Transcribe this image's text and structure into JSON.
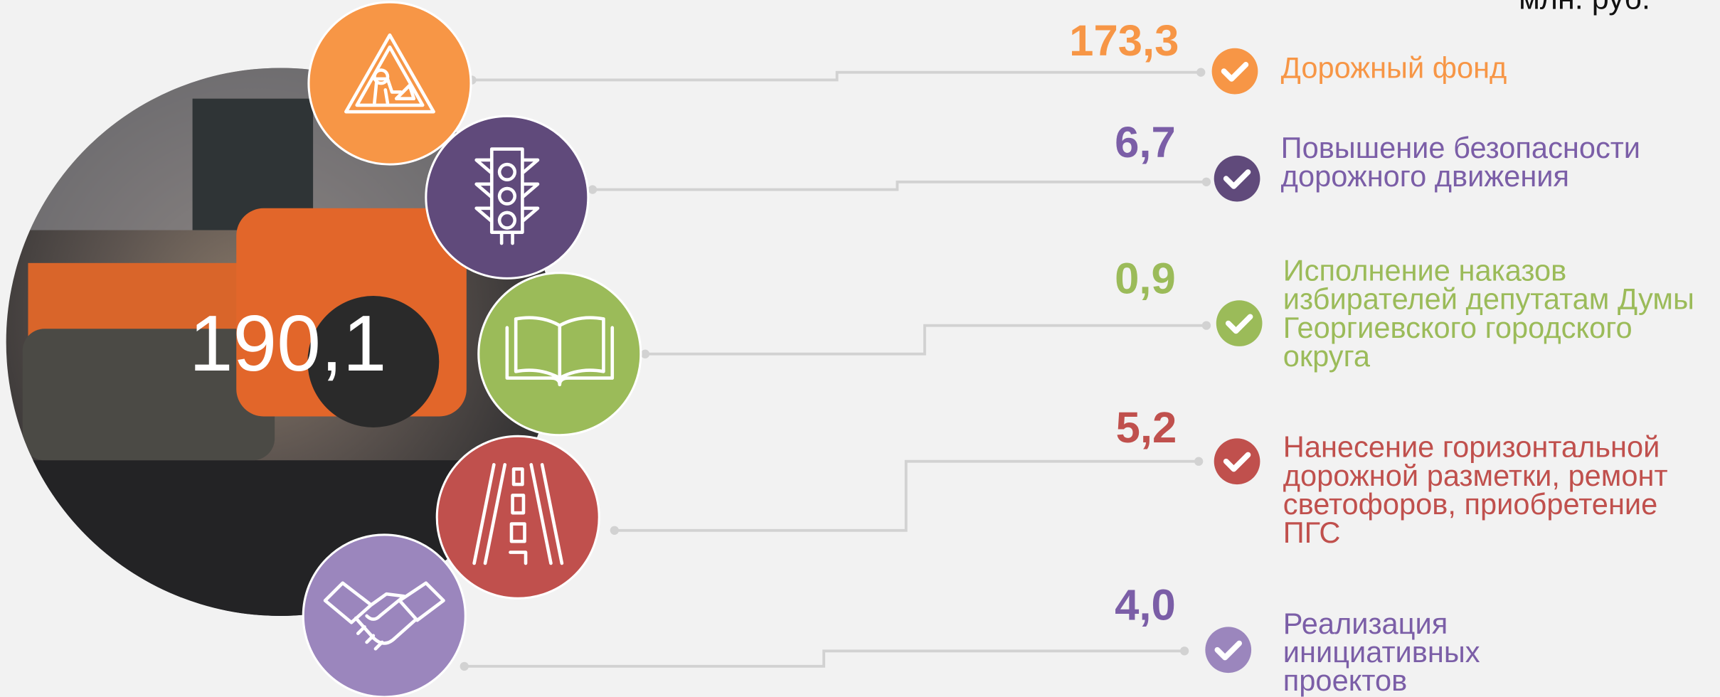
{
  "unit": "млн. руб.",
  "total": "190,1",
  "items": [
    {
      "value": "173,3",
      "label": [
        "Дорожный фонд"
      ]
    },
    {
      "value": "6,7",
      "label": [
        "Повышение безопасности",
        "дорожного движения"
      ]
    },
    {
      "value": "0,9",
      "label": [
        "Исполнение наказов",
        "избирателей депутатам Думы",
        "Георгиевского городского",
        "округа"
      ]
    },
    {
      "value": "5,2",
      "label": [
        "Нанесение горизонтальной",
        "дорожной разметки, ремонт",
        "светофоров, приобретение",
        "ПГС"
      ]
    },
    {
      "value": "4,0",
      "label": [
        "Реализация",
        "инициативных",
        "проектов"
      ]
    }
  ]
}
